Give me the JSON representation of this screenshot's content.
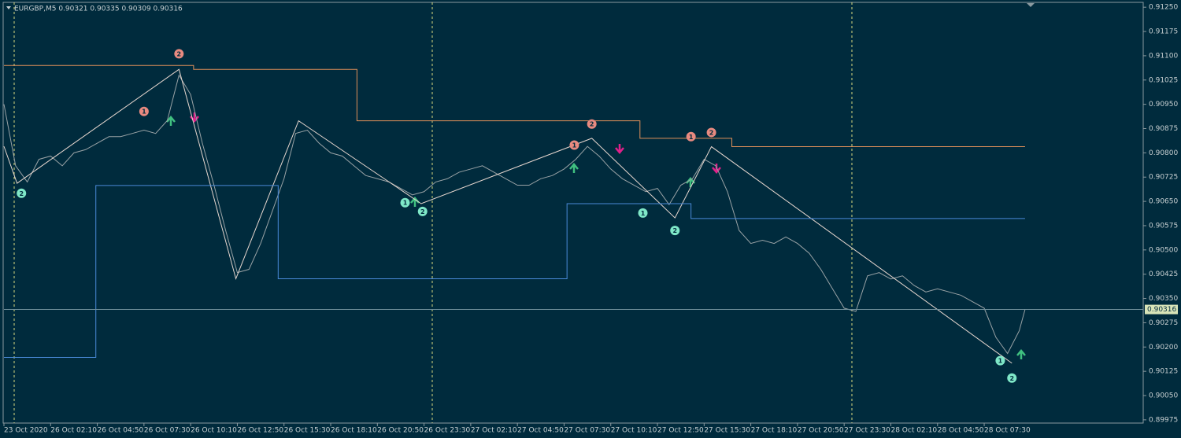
{
  "chart_data": {
    "type": "line",
    "title": "EURGBP,M5  0.90321 0.90335 0.90309 0.90316",
    "xlim": [
      0,
      781
    ],
    "ylim": [
      0.89965,
      0.91265
    ],
    "xticks": [
      {
        "value": 0,
        "label": "23 Oct 2020"
      },
      {
        "value": 32,
        "label": "26 Oct 02:10"
      },
      {
        "value": 64,
        "label": "26 Oct 04:50"
      },
      {
        "value": 96,
        "label": "26 Oct 07:30"
      },
      {
        "value": 128,
        "label": "26 Oct 10:10"
      },
      {
        "value": 160,
        "label": "26 Oct 12:50"
      },
      {
        "value": 192,
        "label": "26 Oct 15:30"
      },
      {
        "value": 224,
        "label": "26 Oct 18:10"
      },
      {
        "value": 256,
        "label": "26 Oct 20:50"
      },
      {
        "value": 288,
        "label": "26 Oct 23:30"
      },
      {
        "value": 320,
        "label": "27 Oct 02:10"
      },
      {
        "value": 352,
        "label": "27 Oct 04:50"
      },
      {
        "value": 384,
        "label": "27 Oct 07:30"
      },
      {
        "value": 416,
        "label": "27 Oct 10:10"
      },
      {
        "value": 448,
        "label": "27 Oct 12:50"
      },
      {
        "value": 480,
        "label": "27 Oct 15:30"
      },
      {
        "value": 512,
        "label": "27 Oct 18:10"
      },
      {
        "value": 544,
        "label": "27 Oct 20:50"
      },
      {
        "value": 576,
        "label": "27 Oct 23:30"
      },
      {
        "value": 608,
        "label": "28 Oct 02:10"
      },
      {
        "value": 640,
        "label": "28 Oct 04:50"
      },
      {
        "value": 672,
        "label": "28 Oct 07:30"
      }
    ],
    "yticks": [
      {
        "value": 0.9125,
        "label": "0.91250"
      },
      {
        "value": 0.91175,
        "label": "0.91175"
      },
      {
        "value": 0.911,
        "label": "0.91100"
      },
      {
        "value": 0.91025,
        "label": "0.91025"
      },
      {
        "value": 0.9095,
        "label": "0.90950"
      },
      {
        "value": 0.90875,
        "label": "0.90875"
      },
      {
        "value": 0.908,
        "label": "0.90800"
      },
      {
        "value": 0.90725,
        "label": "0.90725"
      },
      {
        "value": 0.9065,
        "label": "0.90650"
      },
      {
        "value": 0.90575,
        "label": "0.90575"
      },
      {
        "value": 0.905,
        "label": "0.90500"
      },
      {
        "value": 0.90425,
        "label": "0.90425"
      },
      {
        "value": 0.9035,
        "label": "0.90350"
      },
      {
        "value": 0.90275,
        "label": "0.90275"
      },
      {
        "value": 0.902,
        "label": "0.90200"
      },
      {
        "value": 0.90125,
        "label": "0.90125"
      },
      {
        "value": 0.9005,
        "label": "0.90050"
      },
      {
        "value": 0.89975,
        "label": "0.89975"
      }
    ],
    "last_price": 0.90316,
    "series": [
      {
        "color": "#9aa3a6",
        "x": [
          0,
          8,
          16,
          24,
          32,
          40,
          48,
          56,
          64,
          72,
          80,
          88,
          96,
          104,
          112,
          120,
          128,
          136,
          144,
          152,
          160,
          168,
          176,
          184,
          192,
          200,
          208,
          216,
          224,
          232,
          240,
          248,
          256,
          264,
          272,
          280,
          288,
          296,
          304,
          312,
          320,
          328,
          336,
          344,
          352,
          360,
          368,
          376,
          384,
          392,
          400,
          408,
          416,
          424,
          432,
          440,
          448,
          456,
          464,
          472,
          480,
          488,
          496,
          504,
          512,
          520,
          528,
          536,
          544,
          552,
          560,
          568,
          576,
          584,
          592,
          600,
          608,
          616,
          624,
          632,
          640,
          648,
          656,
          664,
          672,
          680,
          688,
          696,
          700
        ],
        "values": [
          0.9095,
          0.9076,
          0.9071,
          0.9078,
          0.9079,
          0.9076,
          0.908,
          0.9081,
          0.9083,
          0.9085,
          0.9085,
          0.9086,
          0.9087,
          0.9086,
          0.909,
          0.9104,
          0.9098,
          0.9083,
          0.907,
          0.9056,
          0.9043,
          0.9044,
          0.9052,
          0.9062,
          0.9072,
          0.9086,
          0.9087,
          0.9083,
          0.908,
          0.9079,
          0.9076,
          0.9073,
          0.9072,
          0.9071,
          0.9069,
          0.9067,
          0.9068,
          0.9071,
          0.9072,
          0.9074,
          0.9075,
          0.9076,
          0.9074,
          0.9072,
          0.907,
          0.907,
          0.9072,
          0.9073,
          0.9075,
          0.9078,
          0.9082,
          0.9079,
          0.9075,
          0.9072,
          0.907,
          0.9068,
          0.9069,
          0.9064,
          0.907,
          0.9072,
          0.9078,
          0.9076,
          0.9068,
          0.9056,
          0.9052,
          0.9053,
          0.9052,
          0.9054,
          0.9052,
          0.9049,
          0.9044,
          0.9038,
          0.9032,
          0.9031,
          0.9042,
          0.9043,
          0.9041,
          0.9042,
          0.9039,
          0.9037,
          0.9038,
          0.9037,
          0.9036,
          0.9034,
          0.9032,
          0.9023,
          0.9018,
          0.9025,
          0.90316
        ]
      },
      {
        "color": "#e8d8d0",
        "x": [
          0,
          9,
          120,
          159,
          202,
          286,
          403,
          460,
          485,
          691
        ],
        "values": [
          0.9082,
          0.90706,
          0.91058,
          0.90411,
          0.90899,
          0.90643,
          0.90845,
          0.90599,
          0.90819,
          0.9015
        ]
      },
      {
        "color": "#e0905a",
        "x": [
          0,
          130,
          130,
          242,
          242,
          436,
          436,
          499,
          499,
          700
        ],
        "values": [
          0.9107,
          0.9107,
          0.91058,
          0.91058,
          0.90899,
          0.90899,
          0.90845,
          0.90845,
          0.90819,
          0.90819
        ]
      },
      {
        "color": "#4a8ad8",
        "x": [
          0,
          63,
          63,
          188,
          188,
          386,
          386,
          471,
          471,
          700
        ],
        "values": [
          0.90168,
          0.90168,
          0.90699,
          0.90699,
          0.90411,
          0.90411,
          0.90643,
          0.90643,
          0.90597,
          0.90597
        ]
      }
    ],
    "annotations": [
      {
        "label": "2",
        "x": 12,
        "y": 0.90675,
        "color": "#7fe8c8"
      },
      {
        "label": "2",
        "x": 120,
        "y": 0.91106,
        "color": "#e88a80"
      },
      {
        "label": "1",
        "x": 96,
        "y": 0.90928,
        "color": "#e88a80"
      },
      {
        "label": "1",
        "x": 275,
        "y": 0.90646,
        "color": "#7fe8c8"
      },
      {
        "label": "2",
        "x": 287,
        "y": 0.90619,
        "color": "#7fe8c8"
      },
      {
        "label": "2",
        "x": 403,
        "y": 0.90889,
        "color": "#e88a80"
      },
      {
        "label": "1",
        "x": 391,
        "y": 0.90824,
        "color": "#e88a80"
      },
      {
        "label": "1",
        "x": 438,
        "y": 0.90614,
        "color": "#7fe8c8"
      },
      {
        "label": "2",
        "x": 460,
        "y": 0.9056,
        "color": "#7fe8c8"
      },
      {
        "label": "1",
        "x": 471,
        "y": 0.9085,
        "color": "#e88a80"
      },
      {
        "label": "2",
        "x": 485,
        "y": 0.90863,
        "color": "#e88a80"
      },
      {
        "label": "1",
        "x": 683,
        "y": 0.90158,
        "color": "#7fe8c8"
      },
      {
        "label": "2",
        "x": 691,
        "y": 0.90104,
        "color": "#7fe8c8"
      }
    ]
  }
}
